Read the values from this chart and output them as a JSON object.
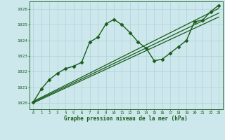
{
  "title": "Graphe pression niveau de la mer (hPa)",
  "bg_color": "#cce8ec",
  "grid_color": "#b0d0d8",
  "line_color": "#1a5c1a",
  "xlim": [
    -0.5,
    23.5
  ],
  "ylim": [
    1019.6,
    1026.5
  ],
  "yticks": [
    1020,
    1021,
    1022,
    1023,
    1024,
    1025,
    1026
  ],
  "xticks": [
    0,
    1,
    2,
    3,
    4,
    5,
    6,
    7,
    8,
    9,
    10,
    11,
    12,
    13,
    14,
    15,
    16,
    17,
    18,
    19,
    20,
    21,
    22,
    23
  ],
  "series": [
    {
      "x": [
        0,
        1,
        2,
        3,
        4,
        5,
        6,
        7,
        8,
        9,
        10,
        11,
        12,
        13,
        14,
        15,
        16,
        17,
        18,
        19,
        20,
        21,
        22,
        23
      ],
      "y": [
        1020.05,
        1020.9,
        1021.5,
        1021.9,
        1022.2,
        1022.35,
        1022.6,
        1023.9,
        1024.2,
        1025.05,
        1025.35,
        1025.0,
        1024.5,
        1023.9,
        1023.5,
        1022.7,
        1022.8,
        1023.2,
        1023.6,
        1024.0,
        1025.2,
        1025.3,
        1025.85,
        1026.25
      ],
      "marker": "D",
      "markersize": 2.5,
      "linewidth": 1.0
    },
    {
      "x": [
        0,
        23
      ],
      "y": [
        1020.1,
        1026.05
      ],
      "marker": null,
      "markersize": 0,
      "linewidth": 0.9
    },
    {
      "x": [
        0,
        23
      ],
      "y": [
        1020.05,
        1025.75
      ],
      "marker": null,
      "markersize": 0,
      "linewidth": 0.9
    },
    {
      "x": [
        0,
        23
      ],
      "y": [
        1020.0,
        1025.5
      ],
      "marker": null,
      "markersize": 0,
      "linewidth": 0.9
    }
  ]
}
